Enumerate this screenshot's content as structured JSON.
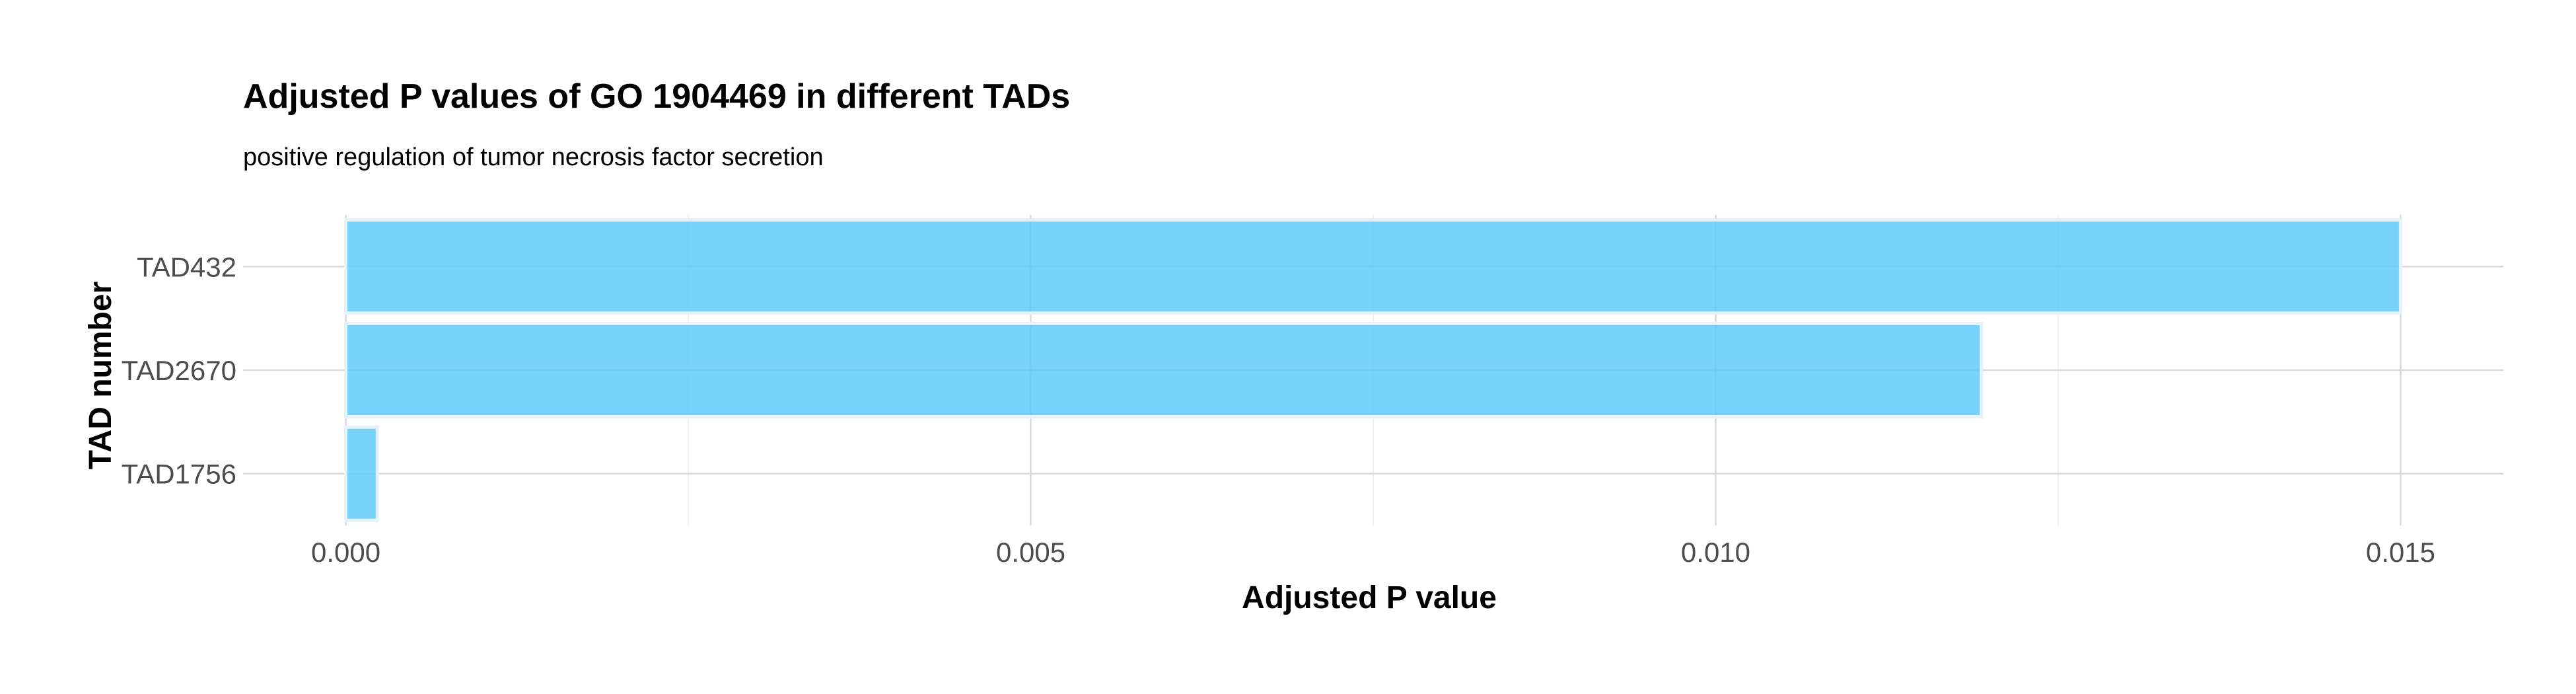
{
  "chart_data": {
    "type": "bar",
    "orientation": "horizontal",
    "title": "Adjusted P values of GO 1904469 in different TADs",
    "subtitle": "positive regulation of tumor necrosis factor secretion",
    "xlabel": "Adjusted P value",
    "ylabel": "TAD number",
    "categories": [
      "TAD432",
      "TAD2670",
      "TAD1756"
    ],
    "values": [
      0.015,
      0.01194,
      0.00023
    ],
    "xlim": [
      -0.00075,
      0.01575
    ],
    "x_ticks": [
      "0.000",
      "0.005",
      "0.010",
      "0.015"
    ],
    "x_tick_values": [
      0,
      0.005,
      0.01,
      0.015
    ],
    "grid": true,
    "bar_color": "#5bc8fb",
    "bar_outline_color": "#e6f2fa"
  }
}
